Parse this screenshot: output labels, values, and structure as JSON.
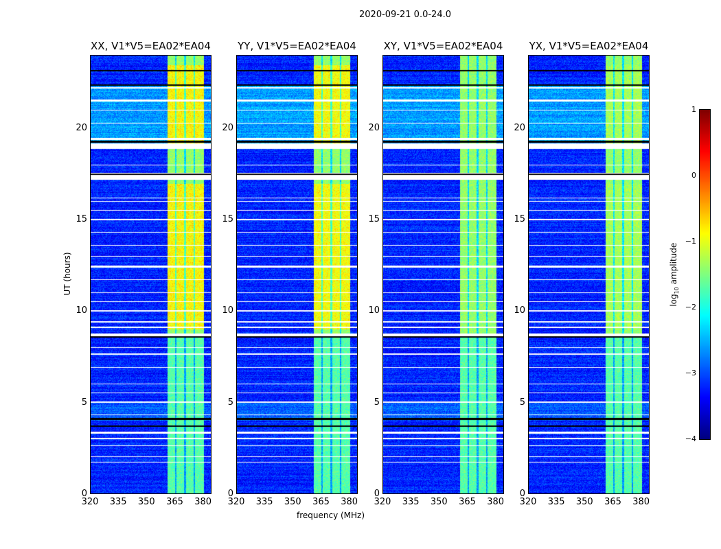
{
  "suptitle": "2020-09-21 0.0-24.0",
  "chart_data": {
    "type": "heatmap",
    "title": "2020-09-21 0.0-24.0",
    "xlabel": "frequency (MHz)",
    "ylabel": "UT (hours)",
    "xlim": [
      320,
      384.5
    ],
    "ylim": [
      0,
      24
    ],
    "xticks": [
      "320",
      "335",
      "350",
      "365",
      "380"
    ],
    "xtick_values": [
      320,
      335,
      350,
      365,
      380
    ],
    "yticks": [
      "0",
      "5",
      "10",
      "15",
      "20"
    ],
    "ytick_values": [
      0,
      5,
      10,
      15,
      20
    ],
    "panels": [
      {
        "title": "XX, V1*V5=EA02*EA04",
        "band_boost": 0.6
      },
      {
        "title": "YY, V1*V5=EA02*EA04",
        "band_boost": 0.55
      },
      {
        "title": "XY, V1*V5=EA02*EA04",
        "band_boost": 0.0
      },
      {
        "title": "YX, V1*V5=EA02*EA04",
        "band_boost": 0.1
      }
    ],
    "rfi_band_mhz": [
      361,
      380.5
    ],
    "rfi_band_gaps_mhz": [
      365.5,
      370.5,
      375.5
    ],
    "background_log_amplitude": -3.2,
    "band_log_amplitude": -1.4,
    "flagged_hours": [
      [
        1.7,
        1.75
      ],
      [
        2.0,
        2.05
      ],
      [
        2.6,
        2.65
      ],
      [
        3.0,
        3.05
      ],
      [
        3.3,
        3.4
      ],
      [
        4.3,
        4.35
      ],
      [
        5.0,
        5.05
      ],
      [
        5.5,
        5.55
      ],
      [
        6.0,
        6.05
      ],
      [
        6.9,
        6.95
      ],
      [
        7.6,
        7.7
      ],
      [
        8.0,
        8.05
      ],
      [
        8.6,
        8.8
      ],
      [
        9.1,
        9.15
      ],
      [
        9.4,
        9.45
      ],
      [
        10.0,
        10.05
      ],
      [
        10.5,
        10.55
      ],
      [
        11.0,
        11.05
      ],
      [
        11.7,
        11.75
      ],
      [
        12.4,
        12.5
      ],
      [
        13.0,
        13.05
      ],
      [
        13.6,
        13.65
      ],
      [
        14.3,
        14.35
      ],
      [
        15.0,
        15.05
      ],
      [
        15.5,
        15.55
      ],
      [
        16.0,
        16.05
      ],
      [
        16.2,
        16.25
      ],
      [
        17.2,
        17.6
      ],
      [
        18.0,
        18.05
      ],
      [
        18.9,
        19.2
      ],
      [
        19.4,
        19.5
      ],
      [
        20.3,
        20.35
      ],
      [
        21.0,
        21.05
      ],
      [
        21.5,
        21.6
      ],
      [
        22.2,
        22.3
      ]
    ],
    "boundary_hours": [
      3.7,
      4.1,
      8.6,
      17.5,
      19.3,
      22.4,
      23.2
    ],
    "colorbar": {
      "label": "log10 amplitude",
      "label_main": "log",
      "label_sub": "10",
      "label_rest": " amplitude",
      "range": [
        -4,
        1
      ],
      "ticks": [
        "1",
        "0",
        "−1",
        "−2",
        "−3",
        "−4"
      ],
      "tick_values": [
        1,
        0,
        -1,
        -2,
        -3,
        -4
      ],
      "colormap": "jet"
    }
  }
}
